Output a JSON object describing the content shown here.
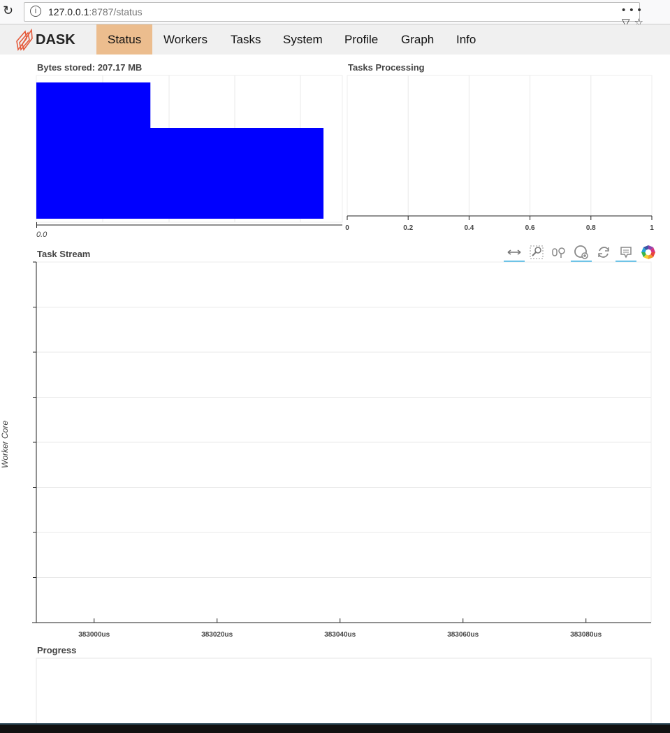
{
  "browser": {
    "url_host": "127.0.0.1",
    "url_rest": ":8787/status",
    "menu_icon": "ellipsis-icon",
    "pocket_icon": "pocket-icon",
    "star_icon": "star-icon"
  },
  "nav": {
    "logo": "DASK",
    "tabs": [
      {
        "label": "Status",
        "active": true
      },
      {
        "label": "Workers"
      },
      {
        "label": "Tasks"
      },
      {
        "label": "System"
      },
      {
        "label": "Profile"
      },
      {
        "label": "Graph"
      },
      {
        "label": "Info"
      }
    ],
    "active_color": "#ecbd8e"
  },
  "bytes_title": "Bytes stored: 207.17 MB",
  "processing_title": "Tasks Processing",
  "stream_title": "Task Stream",
  "progress_title": "Progress",
  "toolbar": [
    "pan-x-icon",
    "box-zoom-icon",
    "wheel-zoom-icon",
    "zoom-in-icon",
    "reset-icon",
    "hover-icon",
    "bokeh-logo-icon"
  ],
  "chart_data": [
    {
      "type": "bar",
      "orientation": "horizontal",
      "title": "Bytes stored: 207.17 MB",
      "values": [
        58.9,
        148.27
      ],
      "color": "#0000ff",
      "xlim": [
        0,
        158
      ],
      "tick_labels": [
        "0.0"
      ],
      "grid": true
    },
    {
      "type": "bar",
      "orientation": "horizontal",
      "title": "Tasks Processing",
      "values": [],
      "xlim": [
        0,
        1
      ],
      "tick_labels": [
        "0",
        "0.2",
        "0.4",
        "0.6",
        "0.8",
        "1"
      ],
      "grid": true
    },
    {
      "type": "bar",
      "title": "Task Stream",
      "ylabel": "Worker Core",
      "values": [],
      "xlim": [
        382990.6,
        383090.6
      ],
      "tick_labels": [
        "383000us",
        "383020us",
        "383040us",
        "383060us",
        "383080us"
      ],
      "tick_values": [
        383000,
        383020,
        383040,
        383060,
        383080
      ],
      "grid": true
    },
    {
      "type": "bar",
      "title": "Progress",
      "values": []
    }
  ]
}
